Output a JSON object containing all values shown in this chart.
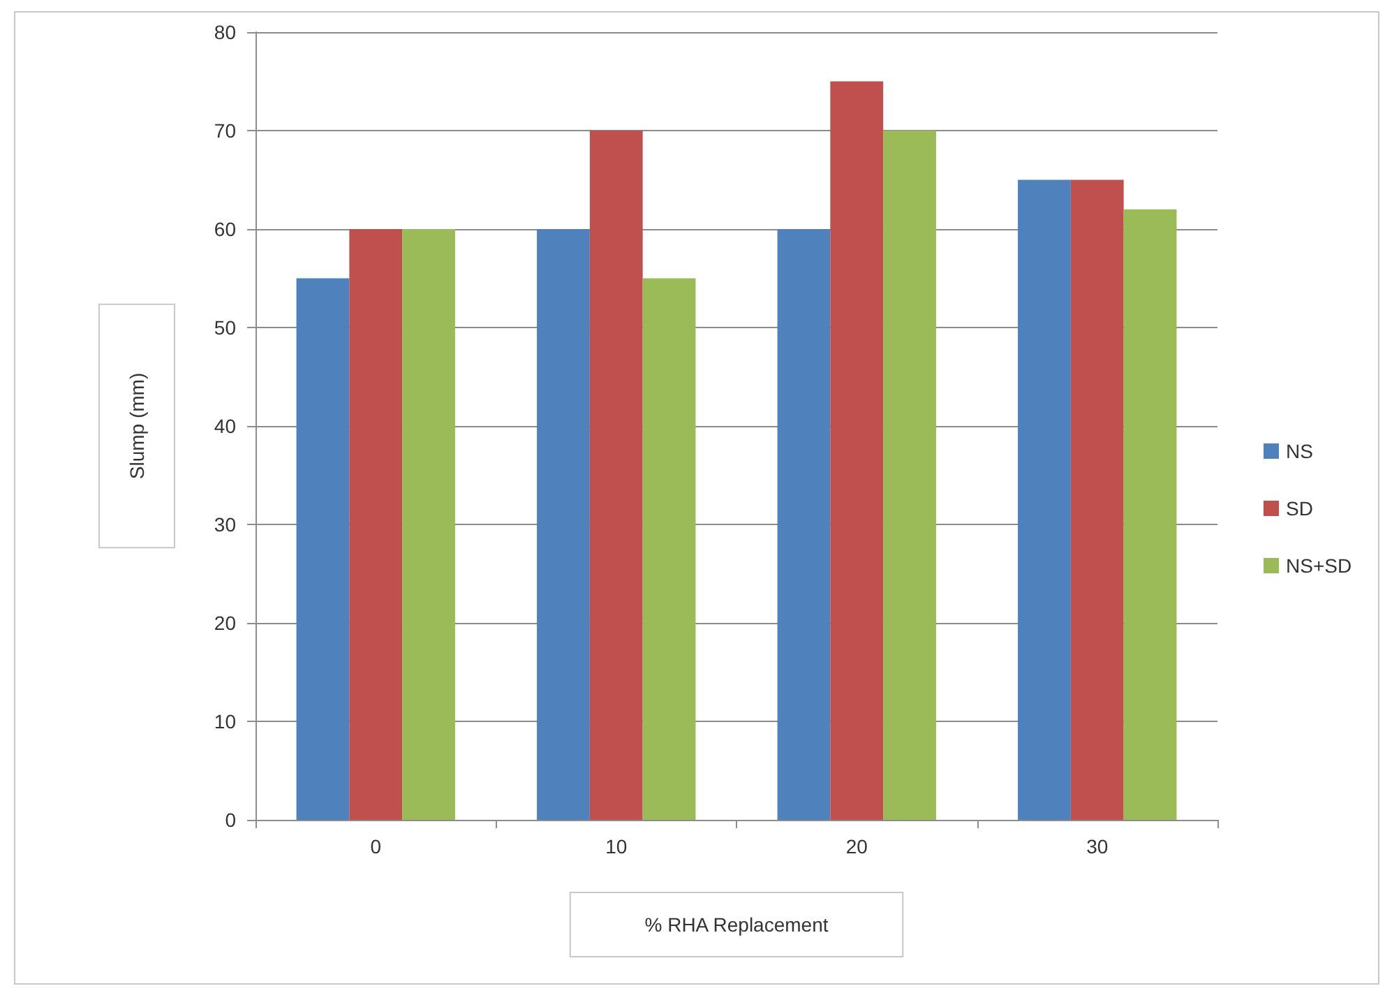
{
  "chart_data": {
    "type": "bar",
    "xlabel": "% RHA Replacement",
    "ylabel": "Slump (mm)",
    "categories": [
      "0",
      "10",
      "20",
      "30"
    ],
    "series": [
      {
        "name": "NS",
        "color": "#4f81bd",
        "values": [
          55,
          60,
          60,
          65
        ]
      },
      {
        "name": "SD",
        "color": "#c0504d",
        "values": [
          60,
          70,
          75,
          65
        ]
      },
      {
        "name": "NS+SD",
        "color": "#9bbb59",
        "values": [
          60,
          55,
          70,
          62
        ]
      }
    ],
    "ylim": [
      0,
      80
    ],
    "yticks": [
      0,
      10,
      20,
      30,
      40,
      50,
      60,
      70,
      80
    ],
    "grid": "y",
    "legend": "right"
  }
}
